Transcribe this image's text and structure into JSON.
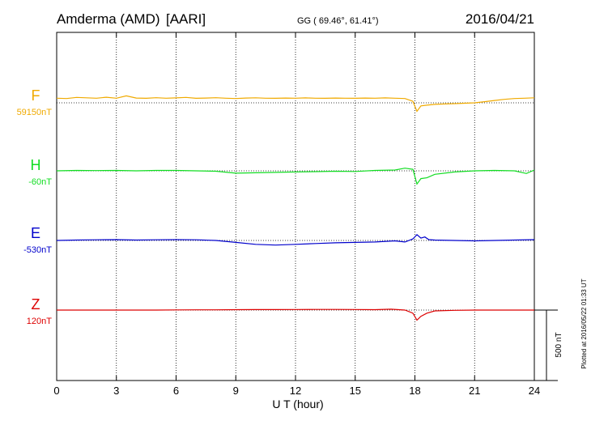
{
  "header": {
    "station": "Amderma (AMD)",
    "org": "[AARI]",
    "coords": "GG ( 69.46°,  61.41°)",
    "date": "2016/04/21"
  },
  "footer": {
    "xlabel": "U T (hour)",
    "plotted": "Plotted at 2016/05/22 01:33 UT",
    "scale_label": "500 nT"
  },
  "chart_data": {
    "type": "line",
    "title": "Amderma (AMD)  [AARI]",
    "xlabel": "U T (hour)",
    "xlim": [
      0,
      24
    ],
    "xticks": [
      0,
      3,
      6,
      9,
      12,
      15,
      18,
      21,
      24
    ],
    "grid": "vertical dotted at every 3 hours",
    "scale_bar_nT": 500,
    "series": [
      {
        "name": "F",
        "baseline_label": "59150nT",
        "color": "#f0aa00",
        "x": [
          0,
          0.5,
          1,
          1.5,
          2,
          2.5,
          3,
          3.5,
          4,
          4.5,
          5,
          5.5,
          6,
          6.5,
          7,
          7.5,
          8,
          8.5,
          9,
          9.5,
          10,
          10.5,
          11,
          11.5,
          12,
          12.5,
          13,
          13.5,
          14,
          14.5,
          15,
          15.5,
          16,
          16.5,
          17,
          17.5,
          17.9,
          18.1,
          18.3,
          18.6,
          19,
          19.5,
          20,
          20.5,
          21,
          21.5,
          22,
          22.5,
          23,
          23.5,
          24
        ],
        "y": [
          60,
          55,
          70,
          65,
          60,
          72,
          60,
          90,
          62,
          58,
          66,
          60,
          64,
          70,
          58,
          62,
          66,
          60,
          55,
          62,
          65,
          60,
          58,
          62,
          60,
          64,
          60,
          58,
          62,
          60,
          58,
          62,
          60,
          64,
          60,
          55,
          20,
          -110,
          -40,
          -30,
          -20,
          -15,
          -10,
          -5,
          0,
          15,
          30,
          45,
          55,
          60,
          65
        ]
      },
      {
        "name": "H",
        "baseline_label": "-60nT",
        "color": "#11dd22",
        "x": [
          0,
          1,
          2,
          3,
          4,
          5,
          6,
          7,
          8,
          9,
          10,
          11,
          12,
          13,
          14,
          15,
          16,
          17,
          17.5,
          17.9,
          18.1,
          18.3,
          18.6,
          19,
          20,
          21,
          22,
          23,
          23.6,
          24
        ],
        "y": [
          0,
          5,
          3,
          5,
          0,
          5,
          5,
          0,
          -5,
          -30,
          -25,
          -20,
          -15,
          -10,
          -5,
          -8,
          5,
          10,
          35,
          20,
          -170,
          -100,
          -90,
          -45,
          -15,
          0,
          5,
          0,
          -35,
          10
        ]
      },
      {
        "name": "E",
        "baseline_label": "-530nT",
        "color": "#0000cc",
        "x": [
          0,
          1,
          2,
          3,
          4,
          5,
          6,
          7,
          8,
          9,
          10,
          11,
          12,
          13,
          14,
          15,
          16,
          17,
          17.5,
          17.9,
          18.1,
          18.3,
          18.5,
          18.7,
          19,
          20,
          21,
          22,
          23,
          24
        ],
        "y": [
          0,
          5,
          8,
          10,
          5,
          8,
          10,
          8,
          0,
          -25,
          -50,
          -60,
          -50,
          -40,
          -30,
          -25,
          -20,
          -5,
          -20,
          20,
          75,
          30,
          45,
          10,
          5,
          0,
          -5,
          0,
          5,
          10
        ]
      },
      {
        "name": "Z",
        "baseline_label": "120nT",
        "color": "#dd0000",
        "x": [
          0,
          1,
          2,
          3,
          4,
          5,
          6,
          7,
          8,
          9,
          10,
          11,
          12,
          13,
          14,
          15,
          16,
          16.8,
          17.5,
          17.9,
          18.1,
          18.3,
          18.6,
          19,
          20,
          21,
          22,
          23,
          24
        ],
        "y": [
          0,
          0,
          0,
          0,
          0,
          0,
          2,
          3,
          3,
          5,
          6,
          6,
          7,
          8,
          8,
          7,
          5,
          12,
          0,
          -40,
          -130,
          -80,
          -40,
          -10,
          -3,
          0,
          0,
          0,
          0
        ]
      }
    ]
  }
}
